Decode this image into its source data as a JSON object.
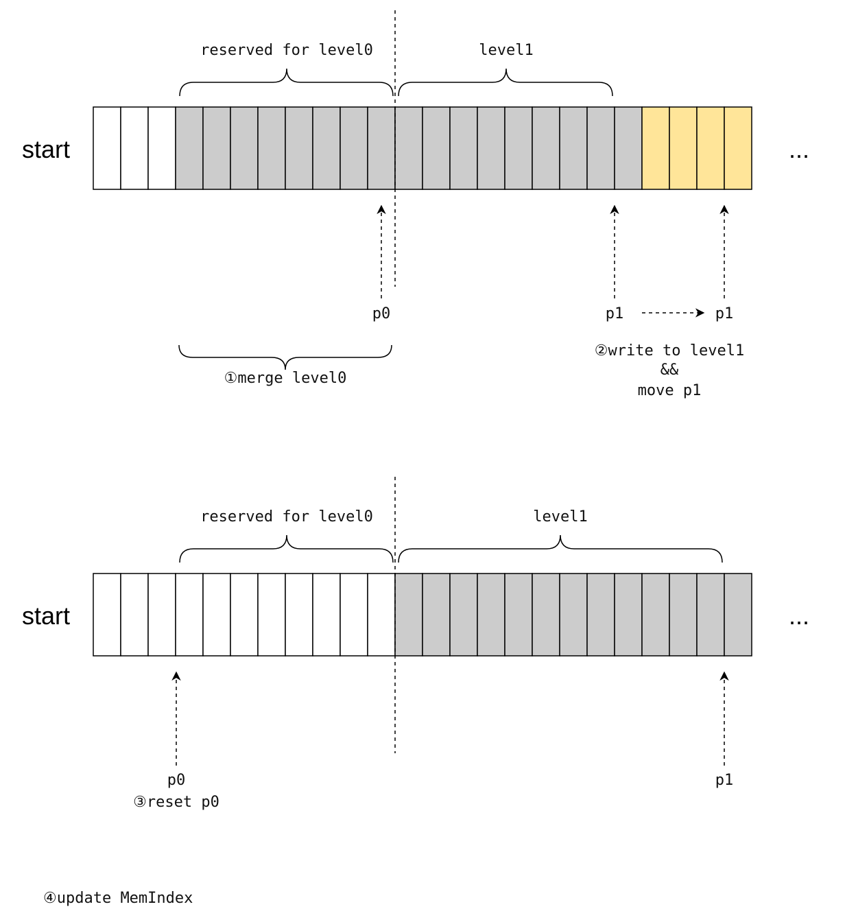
{
  "colors": {
    "empty": "#ffffff",
    "used": "#cccccc",
    "new": "#ffe599",
    "stroke": "#000000"
  },
  "top": {
    "start_label": "start",
    "ellipsis": "...",
    "reserved_label": "reserved for level0",
    "level1_label": "level1",
    "cells": [
      "empty",
      "empty",
      "empty",
      "used",
      "used",
      "used",
      "used",
      "used",
      "used",
      "used",
      "used",
      "used",
      "used",
      "used",
      "used",
      "used",
      "used",
      "used",
      "used",
      "used",
      "new",
      "new",
      "new",
      "new"
    ],
    "p0_label": "p0",
    "p1_label": "p1",
    "p1_moved_label": "p1",
    "merge_label": "①merge level0",
    "write_label_line1": "②write to level1",
    "write_label_line2": "&&",
    "write_label_line3": "move p1"
  },
  "bottom": {
    "start_label": "start",
    "ellipsis": "...",
    "reserved_label": "reserved for level0",
    "level1_label": "level1",
    "cells": [
      "empty",
      "empty",
      "empty",
      "empty",
      "empty",
      "empty",
      "empty",
      "empty",
      "empty",
      "empty",
      "empty",
      "used",
      "used",
      "used",
      "used",
      "used",
      "used",
      "used",
      "used",
      "used",
      "used",
      "used",
      "used",
      "used"
    ],
    "p0_label": "p0",
    "p1_label": "p1",
    "reset_label": "③reset p0"
  },
  "footer": {
    "update_label": "④update MemIndex"
  }
}
